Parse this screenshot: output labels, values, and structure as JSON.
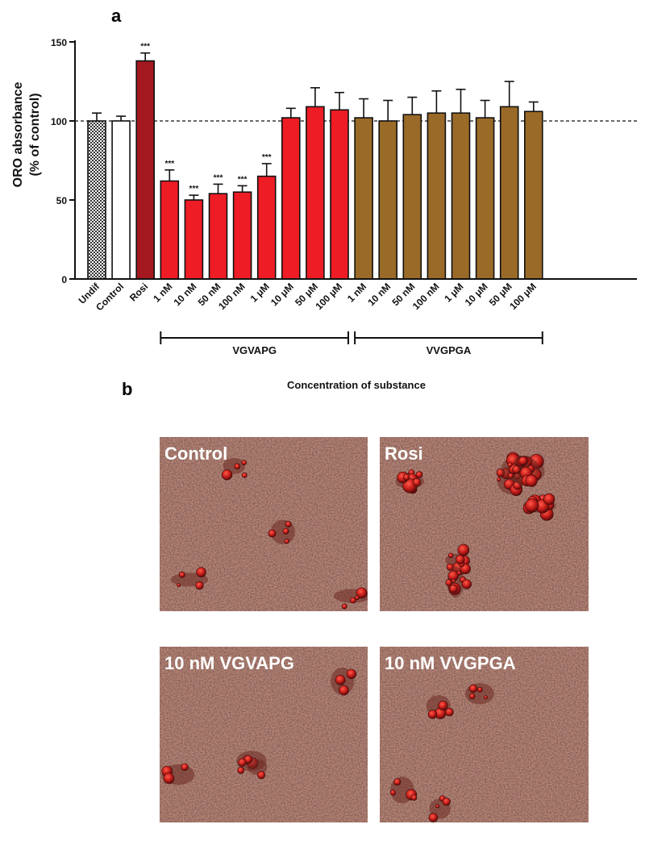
{
  "panel_a_label": "a",
  "panel_b_label": "b",
  "chart_data": {
    "type": "bar",
    "ylabel_line1": "ORO absorbance",
    "ylabel_line2": "(% of control)",
    "xlabel": "Concentration of substance",
    "ylim": [
      0,
      150
    ],
    "yticks": [
      0,
      50,
      100,
      150
    ],
    "reference_line": 100,
    "categories": [
      "Undif",
      "Control",
      "Rosi",
      "1 nM",
      "10 nM",
      "50 nM",
      "100 nM",
      "1 μM",
      "10 μM",
      "50 μM",
      "100 μM",
      "1 nM",
      "10 nM",
      "50 nM",
      "100 nM",
      "1 μM",
      "10 μM",
      "50 μM",
      "100 μM"
    ],
    "values": [
      100,
      100,
      138,
      62,
      50,
      54,
      55,
      65,
      102,
      109,
      107,
      102,
      100,
      104,
      105,
      105,
      102,
      109,
      106
    ],
    "errors": [
      5,
      3,
      5,
      7,
      3,
      6,
      4,
      8,
      6,
      12,
      11,
      12,
      13,
      11,
      14,
      15,
      11,
      16,
      6
    ],
    "significance": [
      "",
      "",
      "***",
      "***",
      "***",
      "***",
      "***",
      "***",
      "",
      "",
      "",
      "",
      "",
      "",
      "",
      "",
      "",
      "",
      ""
    ],
    "bar_style": [
      "checker",
      "white",
      "darkred",
      "red",
      "red",
      "red",
      "red",
      "red",
      "red",
      "red",
      "red",
      "brown",
      "brown",
      "brown",
      "brown",
      "brown",
      "brown",
      "brown",
      "brown"
    ],
    "colors": {
      "checker": "#8a8a8a",
      "white": "#ffffff",
      "darkred": "#a3191f",
      "red": "#ee1c25",
      "brown": "#9a6a28"
    },
    "groups": [
      {
        "label": "VGVAPG",
        "from_index": 3,
        "to_index": 10
      },
      {
        "label": "VVGPGA",
        "from_index": 11,
        "to_index": 18
      }
    ]
  },
  "micrographs": [
    {
      "label": "Control",
      "variant": "control"
    },
    {
      "label": "Rosi",
      "variant": "rosi"
    },
    {
      "label": "10 nM VGVAPG",
      "variant": "vgvapg"
    },
    {
      "label": "10 nM VVGPGA",
      "variant": "vvgpga"
    }
  ]
}
